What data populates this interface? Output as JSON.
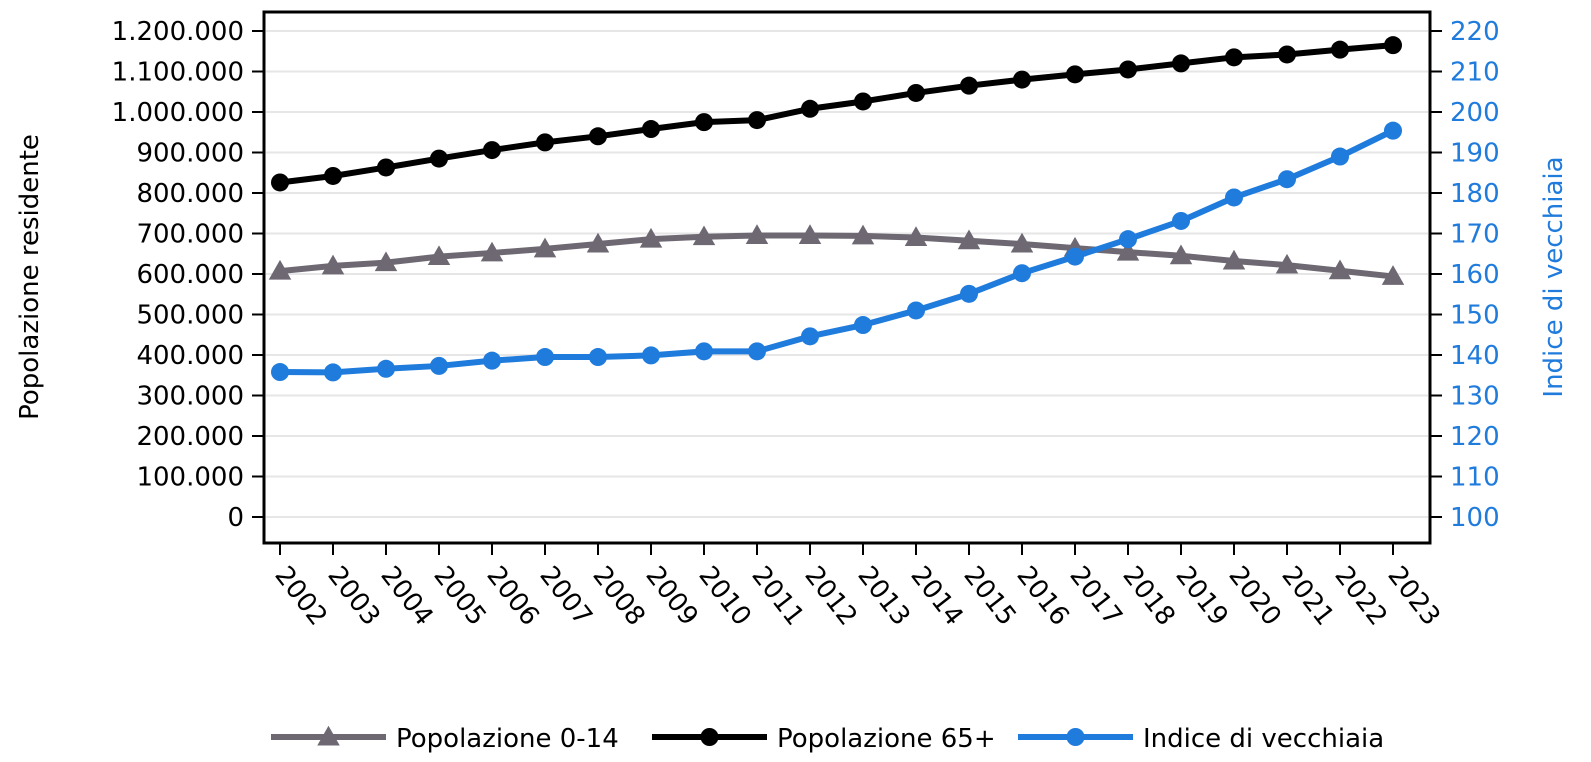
{
  "chart_data": {
    "type": "line",
    "x": [
      "2002",
      "2003",
      "2004",
      "2005",
      "2006",
      "2007",
      "2008",
      "2009",
      "2010",
      "2011",
      "2012",
      "2013",
      "2014",
      "2015",
      "2016",
      "2017",
      "2018",
      "2019",
      "2020",
      "2021",
      "2022",
      "2023"
    ],
    "y_left": {
      "label": "Popolazione residente",
      "ylim": [
        0,
        1200000
      ],
      "ticks": [
        0,
        100000,
        200000,
        300000,
        400000,
        500000,
        600000,
        700000,
        800000,
        900000,
        1000000,
        1100000,
        1200000
      ],
      "tick_labels": [
        "0",
        "100.000",
        "200.000",
        "300.000",
        "400.000",
        "500.000",
        "600.000",
        "700.000",
        "800.000",
        "900.000",
        "1.000.000",
        "1.100.000",
        "1.200.000"
      ]
    },
    "y_right": {
      "label": "Indice di vecchiaia",
      "ylim": [
        100,
        220
      ],
      "ticks": [
        100,
        110,
        120,
        130,
        140,
        150,
        160,
        170,
        180,
        190,
        200,
        210,
        220
      ],
      "tick_labels": [
        "100",
        "110",
        "120",
        "130",
        "140",
        "150",
        "160",
        "170",
        "180",
        "190",
        "200",
        "210",
        "220"
      ],
      "color": "#1f7bdc"
    },
    "series": [
      {
        "name": "Popolazione 0-14",
        "axis": "left",
        "marker": "triangle",
        "color": "#6e6873",
        "values": [
          607000,
          620000,
          628000,
          643000,
          652000,
          662000,
          674000,
          686000,
          692000,
          695000,
          695000,
          694000,
          690000,
          682000,
          674000,
          664000,
          654000,
          645000,
          632000,
          622000,
          608000,
          594000
        ]
      },
      {
        "name": "Popolazione 65+",
        "axis": "left",
        "marker": "circle",
        "color": "#000000",
        "values": [
          826000,
          842000,
          863000,
          885000,
          906000,
          925000,
          940000,
          958000,
          975000,
          980000,
          1008000,
          1026000,
          1047000,
          1065000,
          1080000,
          1093000,
          1105000,
          1120000,
          1135000,
          1142000,
          1154000,
          1165000
        ]
      },
      {
        "name": "Indice di vecchiaia",
        "axis": "right",
        "marker": "circle",
        "color": "#1f7bdc",
        "values": [
          135.8,
          135.7,
          136.6,
          137.3,
          138.6,
          139.5,
          139.5,
          139.9,
          140.9,
          140.9,
          144.6,
          147.4,
          151.0,
          155.1,
          160.2,
          164.3,
          168.6,
          173.1,
          178.9,
          183.4,
          189.0,
          195.4
        ]
      }
    ],
    "grid": true,
    "legend_position": "bottom"
  }
}
